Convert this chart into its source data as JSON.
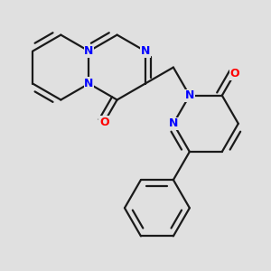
{
  "bg_color": "#e0e0e0",
  "bond_color": "#1a1a1a",
  "N_color": "#0000ff",
  "O_color": "#ff0000",
  "bond_width": 1.6,
  "fig_width": 3.0,
  "fig_height": 3.0,
  "dpi": 100,
  "font_size": 9.0,
  "xlim": [
    0.0,
    9.0
  ],
  "ylim": [
    0.5,
    9.0
  ]
}
